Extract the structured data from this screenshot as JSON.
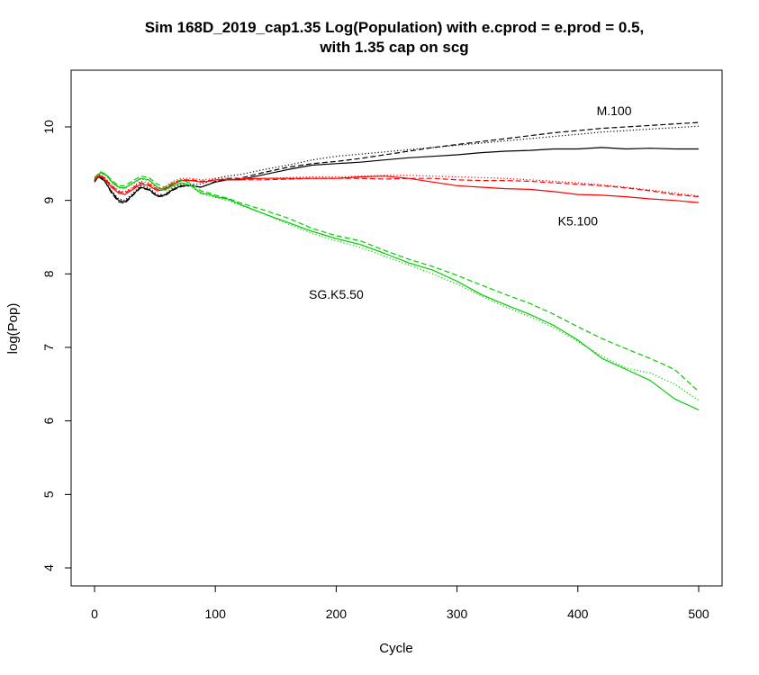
{
  "chart_data": {
    "type": "line",
    "title": "Sim 168D_2019_cap1.35 Log(Population) with e.cprod = e.prod = 0.5,",
    "subtitle": "with 1.35 cap on scg",
    "xlabel": "Cycle",
    "ylabel": "log(Pop)",
    "xlim": [
      0,
      500
    ],
    "ylim": [
      4,
      10.5
    ],
    "xticks": [
      0,
      100,
      200,
      300,
      400,
      500
    ],
    "yticks": [
      4,
      5,
      6,
      7,
      8,
      9,
      10
    ],
    "grid": false,
    "colors": {
      "black": "#000000",
      "red": "#ff0000",
      "green": "#00cd00"
    },
    "annotations": [
      {
        "text": "M.100",
        "x": 430,
        "y": 10.22
      },
      {
        "text": "K5.100",
        "x": 400,
        "y": 8.72
      },
      {
        "text": "SG.K5.50",
        "x": 200,
        "y": 7.72
      }
    ],
    "series": [
      {
        "color": "black",
        "dash": "solid",
        "x": [
          0,
          3,
          8,
          14,
          20,
          25,
          30,
          38,
          45,
          52,
          58,
          65,
          72,
          80,
          88,
          95,
          100,
          110,
          120,
          140,
          160,
          180,
          200,
          220,
          240,
          260,
          280,
          300,
          320,
          340,
          360,
          380,
          400,
          420,
          440,
          460,
          480,
          500
        ],
        "y": [
          9.25,
          9.32,
          9.27,
          9.12,
          9.0,
          8.98,
          9.05,
          9.18,
          9.15,
          9.06,
          9.07,
          9.15,
          9.2,
          9.2,
          9.18,
          9.22,
          9.25,
          9.28,
          9.28,
          9.35,
          9.42,
          9.48,
          9.5,
          9.52,
          9.55,
          9.58,
          9.6,
          9.62,
          9.65,
          9.67,
          9.68,
          9.7,
          9.7,
          9.72,
          9.7,
          9.71,
          9.7,
          9.7
        ]
      },
      {
        "color": "black",
        "dash": "dashed",
        "x": [
          0,
          3,
          8,
          14,
          20,
          25,
          30,
          38,
          45,
          52,
          58,
          65,
          72,
          80,
          88,
          95,
          100,
          110,
          120,
          140,
          160,
          180,
          200,
          220,
          240,
          260,
          280,
          300,
          320,
          340,
          360,
          380,
          400,
          420,
          440,
          460,
          480,
          500
        ],
        "y": [
          9.26,
          9.34,
          9.28,
          9.1,
          8.98,
          8.96,
          9.04,
          9.17,
          9.14,
          9.05,
          9.06,
          9.14,
          9.19,
          9.2,
          9.18,
          9.22,
          9.26,
          9.3,
          9.3,
          9.38,
          9.45,
          9.5,
          9.53,
          9.57,
          9.62,
          9.67,
          9.72,
          9.76,
          9.8,
          9.84,
          9.88,
          9.92,
          9.95,
          9.98,
          10.0,
          10.02,
          10.04,
          10.06
        ]
      },
      {
        "color": "black",
        "dash": "dotted",
        "x": [
          0,
          3,
          8,
          14,
          20,
          25,
          30,
          38,
          45,
          52,
          58,
          65,
          72,
          80,
          88,
          95,
          100,
          110,
          120,
          140,
          160,
          180,
          200,
          220,
          240,
          260,
          280,
          300,
          320,
          340,
          360,
          380,
          400,
          420,
          440,
          460,
          480,
          500
        ],
        "y": [
          9.27,
          9.33,
          9.29,
          9.13,
          9.02,
          9.0,
          9.07,
          9.2,
          9.17,
          9.08,
          9.08,
          9.17,
          9.22,
          9.22,
          9.22,
          9.26,
          9.3,
          9.33,
          9.35,
          9.42,
          9.48,
          9.55,
          9.6,
          9.63,
          9.66,
          9.69,
          9.72,
          9.75,
          9.78,
          9.81,
          9.84,
          9.87,
          9.9,
          9.93,
          9.95,
          9.97,
          9.99,
          10.01
        ]
      },
      {
        "color": "red",
        "dash": "solid",
        "x": [
          0,
          3,
          8,
          14,
          20,
          25,
          30,
          38,
          45,
          52,
          58,
          65,
          72,
          80,
          88,
          95,
          100,
          110,
          120,
          140,
          160,
          180,
          200,
          220,
          240,
          260,
          280,
          300,
          320,
          340,
          360,
          380,
          400,
          420,
          440,
          460,
          480,
          500
        ],
        "y": [
          9.27,
          9.33,
          9.3,
          9.18,
          9.1,
          9.08,
          9.13,
          9.22,
          9.2,
          9.13,
          9.15,
          9.22,
          9.27,
          9.27,
          9.25,
          9.26,
          9.28,
          9.28,
          9.29,
          9.3,
          9.3,
          9.3,
          9.3,
          9.32,
          9.33,
          9.3,
          9.25,
          9.2,
          9.18,
          9.16,
          9.15,
          9.12,
          9.08,
          9.07,
          9.05,
          9.02,
          9.0,
          8.97
        ]
      },
      {
        "color": "red",
        "dash": "dashed",
        "x": [
          0,
          3,
          8,
          14,
          20,
          25,
          30,
          38,
          45,
          52,
          58,
          65,
          72,
          80,
          88,
          95,
          100,
          110,
          120,
          140,
          160,
          180,
          200,
          220,
          240,
          260,
          280,
          300,
          320,
          340,
          360,
          380,
          400,
          420,
          440,
          460,
          480,
          500
        ],
        "y": [
          9.28,
          9.35,
          9.31,
          9.2,
          9.12,
          9.1,
          9.15,
          9.24,
          9.22,
          9.15,
          9.16,
          9.24,
          9.28,
          9.28,
          9.26,
          9.27,
          9.28,
          9.28,
          9.28,
          9.28,
          9.29,
          9.3,
          9.3,
          9.3,
          9.29,
          9.3,
          9.3,
          9.28,
          9.27,
          9.27,
          9.26,
          9.24,
          9.22,
          9.2,
          9.17,
          9.13,
          9.08,
          9.05
        ]
      },
      {
        "color": "red",
        "dash": "dotted",
        "x": [
          0,
          3,
          8,
          14,
          20,
          25,
          30,
          38,
          45,
          52,
          58,
          65,
          72,
          80,
          88,
          95,
          100,
          110,
          120,
          140,
          160,
          180,
          200,
          220,
          240,
          260,
          280,
          300,
          320,
          340,
          360,
          380,
          400,
          420,
          440,
          460,
          480,
          500
        ],
        "y": [
          9.29,
          9.35,
          9.32,
          9.21,
          9.13,
          9.12,
          9.16,
          9.26,
          9.24,
          9.17,
          9.18,
          9.26,
          9.3,
          9.3,
          9.28,
          9.29,
          9.3,
          9.3,
          9.3,
          9.3,
          9.31,
          9.32,
          9.32,
          9.33,
          9.34,
          9.34,
          9.33,
          9.32,
          9.31,
          9.3,
          9.28,
          9.26,
          9.24,
          9.21,
          9.18,
          9.14,
          9.1,
          9.06
        ]
      },
      {
        "color": "green",
        "dash": "solid",
        "x": [
          0,
          5,
          10,
          15,
          20,
          25,
          30,
          38,
          45,
          52,
          58,
          65,
          72,
          80,
          88,
          95,
          100,
          110,
          120,
          140,
          160,
          180,
          200,
          220,
          240,
          260,
          280,
          300,
          320,
          340,
          360,
          380,
          400,
          420,
          440,
          460,
          480,
          500
        ],
        "y": [
          9.3,
          9.38,
          9.34,
          9.24,
          9.18,
          9.17,
          9.22,
          9.3,
          9.28,
          9.18,
          9.14,
          9.2,
          9.24,
          9.2,
          9.1,
          9.08,
          9.05,
          9.02,
          8.95,
          8.82,
          8.7,
          8.58,
          8.48,
          8.4,
          8.28,
          8.15,
          8.05,
          7.9,
          7.72,
          7.58,
          7.45,
          7.3,
          7.1,
          6.85,
          6.7,
          6.55,
          6.3,
          6.15
        ]
      },
      {
        "color": "green",
        "dash": "dashed",
        "x": [
          0,
          5,
          10,
          15,
          20,
          25,
          30,
          38,
          45,
          52,
          58,
          65,
          72,
          80,
          88,
          95,
          100,
          110,
          120,
          140,
          160,
          180,
          200,
          220,
          240,
          260,
          280,
          300,
          320,
          340,
          360,
          380,
          400,
          420,
          440,
          460,
          480,
          500
        ],
        "y": [
          9.31,
          9.39,
          9.35,
          9.26,
          9.2,
          9.2,
          9.25,
          9.33,
          9.31,
          9.22,
          9.18,
          9.24,
          9.28,
          9.23,
          9.13,
          9.1,
          9.07,
          9.03,
          8.97,
          8.87,
          8.76,
          8.62,
          8.52,
          8.45,
          8.32,
          8.2,
          8.1,
          7.98,
          7.85,
          7.72,
          7.6,
          7.45,
          7.28,
          7.12,
          6.98,
          6.85,
          6.7,
          6.4
        ]
      },
      {
        "color": "green",
        "dash": "dotted",
        "x": [
          0,
          5,
          10,
          15,
          20,
          25,
          30,
          38,
          45,
          52,
          58,
          65,
          72,
          80,
          88,
          95,
          100,
          110,
          120,
          140,
          160,
          180,
          200,
          220,
          240,
          260,
          280,
          300,
          320,
          340,
          360,
          380,
          400,
          420,
          440,
          460,
          480,
          500
        ],
        "y": [
          9.3,
          9.37,
          9.33,
          9.23,
          9.17,
          9.16,
          9.21,
          9.29,
          9.27,
          9.17,
          9.13,
          9.19,
          9.23,
          9.19,
          9.09,
          9.06,
          9.04,
          9.0,
          8.94,
          8.82,
          8.68,
          8.55,
          8.45,
          8.36,
          8.24,
          8.12,
          8.0,
          7.86,
          7.7,
          7.55,
          7.42,
          7.27,
          7.08,
          6.88,
          6.72,
          6.65,
          6.5,
          6.28
        ]
      }
    ]
  }
}
